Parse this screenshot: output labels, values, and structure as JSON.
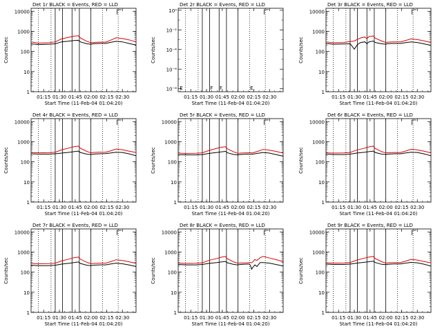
{
  "colors": {
    "events": "#000000",
    "lld": "#dd0000",
    "axes": "#000000"
  },
  "time_labels": [
    "01:15",
    "01:30",
    "01:45",
    "02:00",
    "02:15",
    "02:30"
  ],
  "time_values_min": [
    75,
    90,
    105,
    120,
    135,
    150
  ],
  "xlim_min": [
    63,
    163
  ],
  "xlabel": "Start Time (11-Feb-04 01:04:20)",
  "ylabel": "Counts/sec",
  "ytick_labels_main": [
    "1",
    "10",
    "100",
    "1000",
    "10000"
  ],
  "ytick_values_main": [
    1,
    10,
    100,
    1000,
    10000
  ],
  "ylim_main": [
    1,
    14000
  ],
  "ytick_labels_det2": [
    "10⁰",
    "10⁻²",
    "10⁻⁴",
    "10⁻⁶",
    "10⁻⁸"
  ],
  "ytick_values_det2": [
    0,
    -2,
    -4,
    -6,
    -8
  ],
  "ylim_det2_exp": [
    -8.3,
    0.2
  ],
  "dotted_lines_min": [
    70,
    82,
    131,
    146
  ],
  "solid_lines_min": [
    86,
    93,
    102,
    109,
    120
  ],
  "flag_markers": [
    {
      "label": "E",
      "x": 64.5
    },
    {
      "label": "F",
      "x": 93.5
    },
    {
      "label": "F",
      "x": 102.5
    },
    {
      "label": "E",
      "x": 131.5
    }
  ],
  "chart_data": [
    {
      "type": "line",
      "title": "Det 1r BLACK = Events, RED = LLD",
      "series": [
        {
          "name": "Events",
          "x": [
            63,
            70,
            80,
            86,
            92,
            100,
            104,
            108,
            110,
            116,
            120,
            122,
            128,
            134,
            138,
            144,
            150,
            156,
            163
          ],
          "y": [
            240,
            220,
            230,
            240,
            300,
            330,
            350,
            360,
            300,
            240,
            230,
            240,
            250,
            250,
            280,
            320,
            300,
            250,
            210
          ]
        },
        {
          "name": "LLD",
          "x": [
            63,
            70,
            80,
            86,
            92,
            100,
            104,
            108,
            110,
            116,
            120,
            122,
            128,
            134,
            138,
            144,
            150,
            156,
            163
          ],
          "y": [
            300,
            260,
            270,
            300,
            420,
            520,
            580,
            600,
            470,
            320,
            270,
            280,
            290,
            290,
            350,
            480,
            440,
            380,
            300
          ]
        }
      ]
    },
    {
      "type": "line",
      "title": "Det 2r BLACK = Events, RED = LLD",
      "series": []
    },
    {
      "type": "line",
      "title": "Det 3r BLACK = Events, RED = LLD",
      "series": [
        {
          "name": "Events",
          "x": [
            63,
            70,
            80,
            86,
            88,
            90,
            93,
            96,
            100,
            102,
            104,
            108,
            110,
            116,
            120,
            122,
            128,
            134,
            138,
            144,
            150,
            156,
            163
          ],
          "y": [
            250,
            230,
            235,
            240,
            180,
            130,
            220,
            280,
            300,
            240,
            300,
            330,
            280,
            240,
            230,
            245,
            250,
            250,
            270,
            300,
            280,
            240,
            200
          ]
        },
        {
          "name": "LLD",
          "x": [
            63,
            70,
            80,
            86,
            88,
            90,
            93,
            96,
            100,
            102,
            104,
            108,
            110,
            116,
            120,
            122,
            128,
            134,
            138,
            144,
            150,
            156,
            163
          ],
          "y": [
            300,
            270,
            280,
            310,
            320,
            330,
            400,
            470,
            520,
            430,
            550,
            590,
            460,
            330,
            280,
            290,
            300,
            300,
            340,
            420,
            390,
            340,
            280
          ]
        }
      ]
    },
    {
      "type": "line",
      "title": "Det 4r BLACK = Events, RED = LLD",
      "series": [
        {
          "name": "Events",
          "x": [
            63,
            70,
            80,
            86,
            92,
            100,
            104,
            108,
            110,
            116,
            120,
            122,
            128,
            134,
            138,
            144,
            150,
            156,
            163
          ],
          "y": [
            250,
            240,
            240,
            250,
            270,
            300,
            320,
            340,
            290,
            240,
            230,
            240,
            250,
            255,
            270,
            300,
            290,
            250,
            200
          ]
        },
        {
          "name": "LLD",
          "x": [
            63,
            70,
            80,
            86,
            92,
            100,
            104,
            108,
            110,
            116,
            120,
            122,
            128,
            134,
            138,
            144,
            150,
            156,
            163
          ],
          "y": [
            290,
            280,
            285,
            300,
            390,
            500,
            560,
            600,
            470,
            330,
            280,
            290,
            300,
            300,
            340,
            430,
            400,
            340,
            290
          ]
        }
      ]
    },
    {
      "type": "line",
      "title": "Det 5r BLACK = Events, RED = LLD",
      "series": [
        {
          "name": "Events",
          "x": [
            63,
            70,
            80,
            86,
            92,
            100,
            104,
            108,
            110,
            116,
            120,
            122,
            128,
            134,
            138,
            144,
            150,
            156,
            163
          ],
          "y": [
            230,
            220,
            220,
            230,
            260,
            290,
            310,
            330,
            280,
            230,
            220,
            230,
            240,
            240,
            260,
            290,
            270,
            230,
            190
          ]
        },
        {
          "name": "LLD",
          "x": [
            63,
            70,
            80,
            86,
            92,
            100,
            104,
            108,
            110,
            116,
            120,
            122,
            128,
            134,
            138,
            144,
            150,
            156,
            163
          ],
          "y": [
            270,
            260,
            265,
            280,
            360,
            470,
            530,
            560,
            440,
            310,
            260,
            270,
            280,
            280,
            320,
            410,
            380,
            330,
            270
          ]
        }
      ]
    },
    {
      "type": "line",
      "title": "Det 6r BLACK = Events, RED = LLD",
      "series": [
        {
          "name": "Events",
          "x": [
            63,
            70,
            80,
            86,
            92,
            100,
            104,
            108,
            110,
            116,
            120,
            122,
            128,
            134,
            138,
            144,
            150,
            156,
            163
          ],
          "y": [
            240,
            230,
            230,
            240,
            270,
            300,
            320,
            340,
            290,
            240,
            230,
            240,
            250,
            250,
            270,
            300,
            290,
            250,
            200
          ]
        },
        {
          "name": "LLD",
          "x": [
            63,
            70,
            80,
            86,
            92,
            100,
            104,
            108,
            110,
            116,
            120,
            122,
            128,
            134,
            138,
            144,
            150,
            156,
            163
          ],
          "y": [
            280,
            270,
            275,
            290,
            380,
            480,
            550,
            600,
            460,
            320,
            275,
            285,
            290,
            290,
            330,
            420,
            390,
            340,
            280
          ]
        }
      ]
    },
    {
      "type": "line",
      "title": "Det 7r BLACK = Events, RED = LLD",
      "series": [
        {
          "name": "Events",
          "x": [
            63,
            70,
            80,
            86,
            92,
            100,
            104,
            108,
            110,
            116,
            120,
            122,
            128,
            134,
            138,
            144,
            150,
            156,
            163
          ],
          "y": [
            220,
            210,
            210,
            220,
            250,
            280,
            300,
            320,
            270,
            220,
            210,
            220,
            230,
            230,
            250,
            280,
            260,
            230,
            190
          ]
        },
        {
          "name": "LLD",
          "x": [
            63,
            70,
            80,
            86,
            92,
            100,
            104,
            108,
            110,
            116,
            120,
            122,
            128,
            134,
            138,
            144,
            150,
            156,
            163
          ],
          "y": [
            270,
            260,
            265,
            280,
            360,
            460,
            520,
            560,
            440,
            310,
            260,
            270,
            280,
            280,
            320,
            410,
            380,
            330,
            270
          ]
        }
      ]
    },
    {
      "type": "line",
      "title": "Det 8r BLACK = Events, RED = LLD",
      "series": [
        {
          "name": "Events",
          "x": [
            63,
            70,
            80,
            86,
            92,
            100,
            104,
            108,
            110,
            116,
            120,
            122,
            128,
            131,
            132,
            133,
            134,
            136,
            138,
            141,
            144,
            150,
            156,
            163
          ],
          "y": [
            240,
            230,
            230,
            240,
            270,
            300,
            320,
            340,
            290,
            240,
            230,
            240,
            250,
            250,
            200,
            140,
            170,
            230,
            190,
            300,
            300,
            280,
            240,
            200
          ]
        },
        {
          "name": "LLD",
          "x": [
            63,
            70,
            80,
            86,
            92,
            100,
            104,
            108,
            110,
            116,
            120,
            122,
            128,
            131,
            132,
            133,
            134,
            136,
            138,
            141,
            144,
            150,
            156,
            163
          ],
          "y": [
            280,
            270,
            275,
            290,
            380,
            480,
            550,
            600,
            460,
            320,
            275,
            285,
            290,
            300,
            300,
            290,
            320,
            420,
            380,
            520,
            600,
            500,
            420,
            330
          ]
        }
      ]
    },
    {
      "type": "line",
      "title": "Det 9r BLACK = Events, RED = LLD",
      "series": [
        {
          "name": "Events",
          "x": [
            63,
            70,
            80,
            86,
            92,
            100,
            104,
            108,
            110,
            116,
            120,
            122,
            128,
            134,
            138,
            144,
            150,
            156,
            163
          ],
          "y": [
            250,
            240,
            240,
            250,
            280,
            310,
            330,
            350,
            300,
            245,
            235,
            245,
            255,
            255,
            275,
            305,
            290,
            250,
            200
          ]
        },
        {
          "name": "LLD",
          "x": [
            63,
            70,
            80,
            86,
            92,
            100,
            104,
            108,
            110,
            116,
            120,
            122,
            128,
            134,
            138,
            144,
            150,
            156,
            163
          ],
          "y": [
            290,
            280,
            285,
            300,
            390,
            500,
            560,
            600,
            470,
            330,
            280,
            290,
            300,
            300,
            340,
            430,
            400,
            340,
            290
          ]
        }
      ]
    }
  ]
}
